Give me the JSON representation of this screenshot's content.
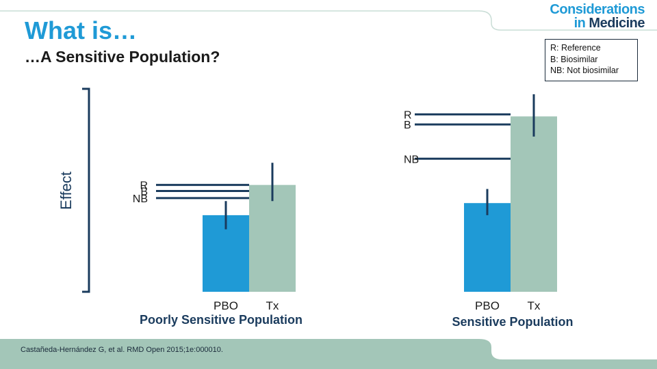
{
  "header": {
    "logo_line1": "Considerations",
    "logo_line2a": "in",
    "logo_line2b": "Medicine",
    "title": "What is…",
    "subtitle": "…A Sensitive Population?"
  },
  "legend_box": {
    "items": [
      "R: Reference",
      "B: Biosimilar",
      "NB: Not biosimilar"
    ]
  },
  "footer": {
    "citation": "Castañeda-Hernández G, et al. RMD Open 2015;1e:000010."
  },
  "colors": {
    "pbo": "#1f9ad6",
    "tx": "#a3c6b8",
    "line": "#1a3b5d",
    "title": "#1f9ad6",
    "band": "#a3c6b8"
  },
  "chart_data": {
    "type": "bar",
    "ylabel": "Effect",
    "ylim": [
      0,
      100
    ],
    "categories": [
      "PBO",
      "Tx"
    ],
    "panels": [
      {
        "name": "Poorly Sensitive Population",
        "values": [
          38,
          53
        ],
        "error": [
          [
            31,
            45
          ],
          [
            45,
            64
          ]
        ],
        "reference_lines": [
          {
            "label": "R",
            "value": 53
          },
          {
            "label": "B",
            "value": 50
          },
          {
            "label": "NB",
            "value": 46.5
          }
        ]
      },
      {
        "name": "Sensitive Population",
        "values": [
          44,
          87
        ],
        "error": [
          [
            38,
            51
          ],
          [
            77,
            98
          ]
        ],
        "reference_lines": [
          {
            "label": "R",
            "value": 88
          },
          {
            "label": "B",
            "value": 83
          },
          {
            "label": "NB",
            "value": 66
          }
        ]
      }
    ]
  }
}
